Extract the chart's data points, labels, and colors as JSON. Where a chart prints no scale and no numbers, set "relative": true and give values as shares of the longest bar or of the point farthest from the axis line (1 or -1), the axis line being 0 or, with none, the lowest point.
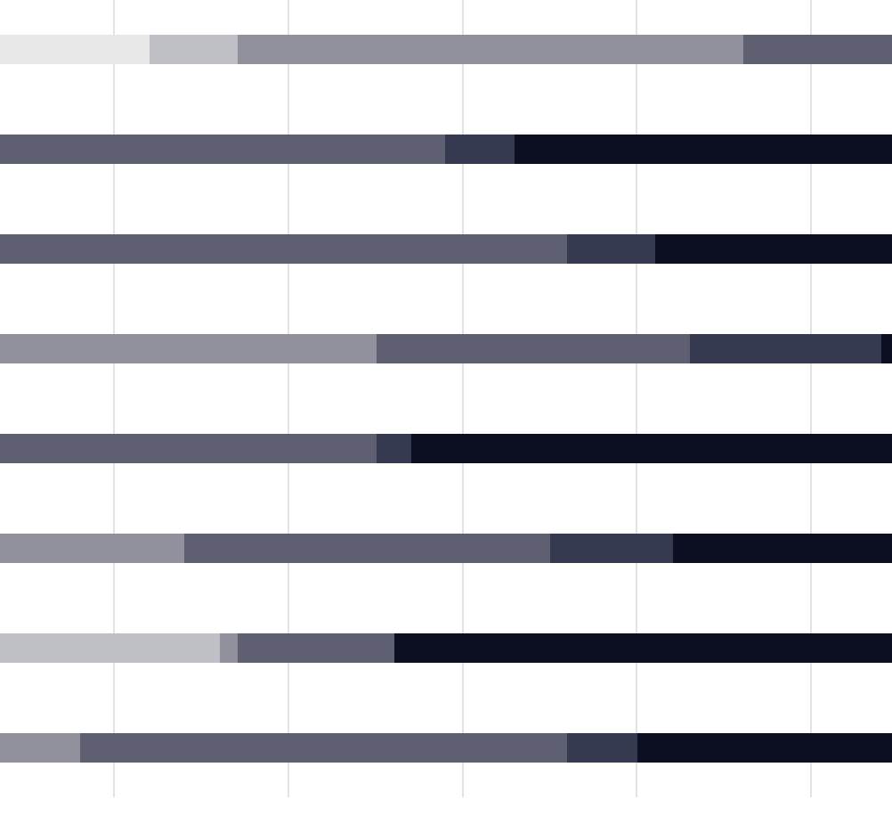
{
  "chart_data": {
    "type": "bar",
    "orientation": "horizontal",
    "stacked": true,
    "relative": true,
    "grid": "x",
    "categories": [
      null,
      null,
      null,
      null,
      null,
      null,
      null,
      null
    ],
    "series": [
      {
        "color": "#e8e8e8",
        "values": [
          0.168,
          null,
          null,
          null,
          null,
          null,
          null,
          null
        ]
      },
      {
        "color": "#bfbfc6",
        "values": [
          0.098,
          null,
          null,
          null,
          null,
          null,
          0.247,
          null
        ]
      },
      {
        "color": "#90919c",
        "values": [
          0.567,
          null,
          null,
          0.422,
          null,
          0.207,
          0.019,
          0.09
        ]
      },
      {
        "color": "#5e6072",
        "values": [
          0.167,
          0.499,
          0.636,
          0.351,
          0.422,
          0.41,
          0.176,
          0.546
        ]
      },
      {
        "color": "#363a50",
        "values": [
          null,
          0.078,
          0.099,
          0.215,
          0.039,
          0.137,
          null,
          0.079
        ]
      },
      {
        "color": "#0c0f22",
        "values": [
          null,
          0.423,
          0.265,
          0.012,
          0.539,
          0.246,
          0.558,
          0.285
        ]
      }
    ]
  }
}
